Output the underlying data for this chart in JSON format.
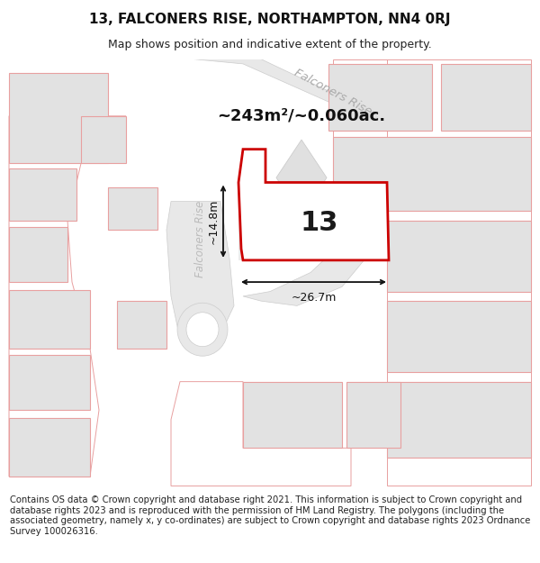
{
  "title": "13, FALCONERS RISE, NORTHAMPTON, NN4 0RJ",
  "subtitle": "Map shows position and indicative extent of the property.",
  "footer": "Contains OS data © Crown copyright and database right 2021. This information is subject to Crown copyright and database rights 2023 and is reproduced with the permission of HM Land Registry. The polygons (including the associated geometry, namely x, y co-ordinates) are subject to Crown copyright and database rights 2023 Ordnance Survey 100026316.",
  "area_label": "~243m²/~0.060ac.",
  "width_label": "~26.7m",
  "height_label": "~14.8m",
  "plot_number": "13",
  "road_label_top": "Falconers Rise",
  "road_label_left": "Falconers Rise",
  "bg_color": "#ffffff",
  "map_bg": "#ffffff",
  "plot_outline_color": "#cc0000",
  "neighbor_fill": "#e2e2e2",
  "neighbor_outline": "#e8a0a0",
  "road_fill": "#e8e8e8",
  "dim_line_color": "#111111",
  "title_fontsize": 11,
  "subtitle_fontsize": 9,
  "footer_fontsize": 7.2
}
